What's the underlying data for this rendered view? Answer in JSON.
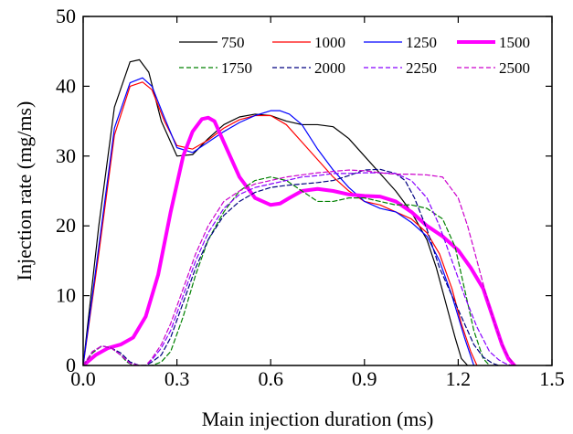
{
  "chart_data": {
    "type": "line",
    "title": "",
    "xlabel": "Main injection duration (ms)",
    "ylabel": "Injection rate (mg/ms)",
    "xlim": [
      0.0,
      1.5
    ],
    "ylim": [
      0,
      50
    ],
    "xticks": [
      "0.0",
      "0.3",
      "0.6",
      "0.9",
      "1.2",
      "1.5"
    ],
    "yticks": [
      "0",
      "10",
      "20",
      "30",
      "40",
      "50"
    ],
    "grid": false,
    "legend_position": "top-right",
    "series": [
      {
        "name": "750",
        "color": "#000000",
        "style": "solid",
        "width": 1.2,
        "x": [
          0.0,
          0.05,
          0.1,
          0.15,
          0.18,
          0.21,
          0.25,
          0.3,
          0.35,
          0.4,
          0.45,
          0.5,
          0.55,
          0.6,
          0.65,
          0.7,
          0.75,
          0.8,
          0.85,
          0.9,
          0.95,
          1.0,
          1.05,
          1.1,
          1.13,
          1.16,
          1.19,
          1.21,
          1.23
        ],
        "y": [
          0,
          20,
          37,
          43.5,
          43.8,
          42,
          35,
          30,
          30.2,
          32.5,
          34.5,
          35.6,
          36,
          35.8,
          35,
          34.5,
          34.5,
          34.2,
          32.5,
          30,
          27.5,
          25,
          22,
          18,
          14,
          9,
          4,
          1,
          0
        ]
      },
      {
        "name": "1000",
        "color": "#ff0000",
        "style": "solid",
        "width": 1.2,
        "x": [
          0.0,
          0.05,
          0.1,
          0.15,
          0.19,
          0.22,
          0.26,
          0.3,
          0.35,
          0.4,
          0.45,
          0.5,
          0.55,
          0.6,
          0.65,
          0.7,
          0.75,
          0.8,
          0.85,
          0.9,
          0.95,
          1.0,
          1.05,
          1.1,
          1.14,
          1.18,
          1.21,
          1.24,
          1.26
        ],
        "y": [
          0,
          16,
          33,
          40,
          40.6,
          39.5,
          35,
          31.5,
          31,
          32.3,
          34,
          35.2,
          35.8,
          35.8,
          34.5,
          32,
          29.5,
          27,
          25,
          23.5,
          23,
          22,
          21,
          19,
          16,
          11,
          6,
          2,
          0
        ]
      },
      {
        "name": "1250",
        "color": "#0000ff",
        "style": "solid",
        "width": 1.2,
        "x": [
          0.0,
          0.05,
          0.1,
          0.15,
          0.19,
          0.22,
          0.26,
          0.3,
          0.35,
          0.4,
          0.45,
          0.5,
          0.55,
          0.6,
          0.63,
          0.66,
          0.7,
          0.75,
          0.8,
          0.85,
          0.9,
          0.95,
          1.0,
          1.05,
          1.1,
          1.14,
          1.18,
          1.22,
          1.25
        ],
        "y": [
          0,
          17,
          34,
          40.5,
          41.2,
          40,
          35.5,
          31.2,
          30.5,
          32,
          33.5,
          34.8,
          35.8,
          36.5,
          36.5,
          36,
          34.5,
          31,
          28,
          25.5,
          23.5,
          22.5,
          22,
          20.5,
          18.5,
          15,
          10,
          4,
          0
        ]
      },
      {
        "name": "1500",
        "color": "#ff00ff",
        "style": "solid",
        "width": 4,
        "x": [
          0.0,
          0.04,
          0.08,
          0.12,
          0.16,
          0.2,
          0.24,
          0.28,
          0.32,
          0.35,
          0.38,
          0.4,
          0.42,
          0.45,
          0.5,
          0.55,
          0.6,
          0.63,
          0.66,
          0.7,
          0.75,
          0.8,
          0.85,
          0.9,
          0.95,
          1.0,
          1.05,
          1.1,
          1.15,
          1.2,
          1.24,
          1.28,
          1.31,
          1.34,
          1.36,
          1.38
        ],
        "y": [
          0,
          1.5,
          2.5,
          3,
          4,
          7,
          13,
          22,
          30,
          33.5,
          35.3,
          35.5,
          35,
          32,
          27,
          24,
          23,
          23.2,
          24,
          25,
          25.3,
          25,
          24.5,
          24.3,
          24.2,
          23.5,
          22,
          20,
          18.5,
          16.5,
          14,
          11,
          7,
          3,
          1,
          0
        ]
      },
      {
        "name": "1750",
        "color": "#008000",
        "style": "dashed",
        "width": 1.2,
        "x": [
          0.0,
          0.03,
          0.06,
          0.09,
          0.12,
          0.14,
          0.16,
          0.18,
          0.2,
          0.22,
          0.25,
          0.28,
          0.32,
          0.36,
          0.4,
          0.45,
          0.5,
          0.55,
          0.6,
          0.65,
          0.7,
          0.75,
          0.8,
          0.85,
          0.9,
          0.95,
          1.0,
          1.05,
          1.1,
          1.15,
          1.19,
          1.22,
          1.25,
          1.28,
          1.3
        ],
        "y": [
          0,
          1.8,
          2.8,
          2.5,
          1.5,
          0.5,
          0,
          0,
          0,
          0,
          0.5,
          2,
          7,
          13,
          18,
          22,
          25,
          26.5,
          27,
          26.5,
          25,
          23.5,
          23.5,
          24,
          24,
          23.5,
          23,
          23,
          22.5,
          21,
          17,
          11,
          5,
          1,
          0
        ]
      },
      {
        "name": "2000",
        "color": "#000080",
        "style": "dashed",
        "width": 1.2,
        "x": [
          0.0,
          0.03,
          0.06,
          0.09,
          0.12,
          0.15,
          0.18,
          0.2,
          0.22,
          0.25,
          0.28,
          0.32,
          0.36,
          0.4,
          0.45,
          0.5,
          0.55,
          0.6,
          0.65,
          0.7,
          0.75,
          0.8,
          0.85,
          0.9,
          0.95,
          1.0,
          1.03,
          1.06,
          1.1,
          1.14,
          1.18,
          1.22,
          1.25,
          1.28,
          1.31,
          1.33
        ],
        "y": [
          0,
          2,
          2.8,
          2.5,
          1.8,
          0.5,
          0,
          0,
          0.5,
          1.5,
          4,
          9,
          14,
          18,
          21.5,
          23.5,
          24.8,
          25.5,
          25.8,
          26,
          26.2,
          26.5,
          27.2,
          28,
          28.1,
          27.5,
          26.5,
          24,
          19.5,
          14,
          10,
          6,
          3,
          1.2,
          0.3,
          0
        ]
      },
      {
        "name": "2250",
        "color": "#8800ff",
        "style": "dashed",
        "width": 1.2,
        "x": [
          0.0,
          0.03,
          0.06,
          0.09,
          0.12,
          0.15,
          0.18,
          0.2,
          0.22,
          0.25,
          0.28,
          0.32,
          0.36,
          0.4,
          0.45,
          0.5,
          0.55,
          0.6,
          0.65,
          0.7,
          0.75,
          0.8,
          0.85,
          0.9,
          0.95,
          1.0,
          1.05,
          1.1,
          1.14,
          1.18,
          1.22,
          1.26,
          1.3,
          1.33,
          1.35,
          1.37
        ],
        "y": [
          0,
          2,
          2.8,
          2.5,
          1.5,
          0.3,
          0,
          0,
          0.8,
          2.5,
          5,
          10,
          15,
          19,
          22.5,
          24.5,
          25.5,
          26,
          26.5,
          27,
          27.2,
          27.5,
          27.5,
          27.6,
          27.6,
          27.5,
          26.5,
          24,
          20,
          15,
          10,
          5.5,
          2,
          0.8,
          0.3,
          0
        ]
      },
      {
        "name": "2500",
        "color": "#cc00cc",
        "style": "dashed",
        "width": 1.2,
        "x": [
          0.0,
          0.03,
          0.06,
          0.09,
          0.12,
          0.15,
          0.18,
          0.2,
          0.22,
          0.25,
          0.28,
          0.32,
          0.36,
          0.4,
          0.45,
          0.5,
          0.55,
          0.6,
          0.65,
          0.7,
          0.75,
          0.8,
          0.85,
          0.9,
          0.95,
          1.0,
          1.05,
          1.1,
          1.15,
          1.2,
          1.23,
          1.26,
          1.29,
          1.32,
          1.35,
          1.38
        ],
        "y": [
          0,
          2,
          2.8,
          2.5,
          1.5,
          0.3,
          0,
          0,
          1,
          3,
          6,
          11,
          16,
          20,
          23.5,
          25,
          26,
          26.5,
          27,
          27.3,
          27.6,
          27.8,
          28,
          27.9,
          27.6,
          27.4,
          27.4,
          27.3,
          27,
          24,
          20,
          15,
          10,
          5.5,
          2,
          0
        ]
      }
    ],
    "legend_order": [
      "750",
      "1000",
      "1250",
      "1500",
      "1750",
      "2000",
      "2250",
      "2500"
    ]
  }
}
